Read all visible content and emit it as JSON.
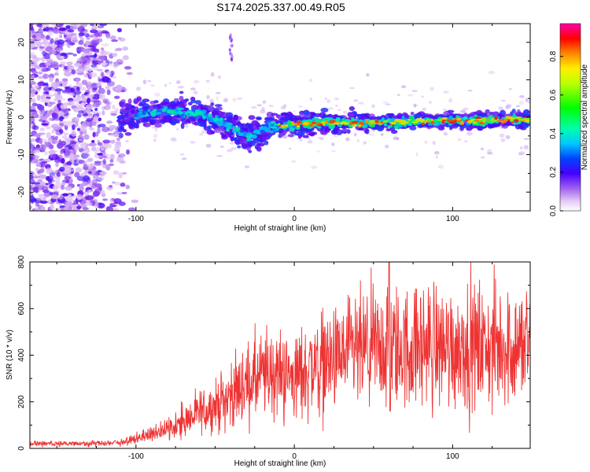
{
  "title": "S174.2025.337.00.49.R05",
  "chart_data": [
    {
      "type": "heatmap",
      "name": "spectrogram",
      "xlabel": "Height of straight line (km)",
      "ylabel": "Frequency (Hz)",
      "xlim": [
        -167,
        149
      ],
      "ylim": [
        -25,
        25
      ],
      "x_ticks": [
        -100,
        0,
        100
      ],
      "y_ticks": [
        -20,
        -10,
        0,
        10,
        20
      ],
      "colorbar": {
        "label": "Normalized spectral amplitude",
        "range": [
          0,
          0.97
        ],
        "ticks": [
          "0.0",
          "0.2",
          "0.4",
          "0.6",
          "0.8"
        ]
      },
      "description_points": {
        "ridge_frequency_hz": [
          {
            "x": -105,
            "y": 0.5
          },
          {
            "x": -80,
            "y": 1.5
          },
          {
            "x": -60,
            "y": 1.0
          },
          {
            "x": -45,
            "y": -1.5
          },
          {
            "x": -30,
            "y": -5.5
          },
          {
            "x": -15,
            "y": -2.5
          },
          {
            "x": 0,
            "y": -2.0
          },
          {
            "x": 20,
            "y": -1.5
          },
          {
            "x": 50,
            "y": -1.5
          },
          {
            "x": 80,
            "y": -1.0
          },
          {
            "x": 110,
            "y": -1.0
          },
          {
            "x": 149,
            "y": -0.5
          }
        ]
      }
    },
    {
      "type": "line",
      "name": "snr",
      "xlabel": "Height of straight line (km)",
      "ylabel": "SNR (10 * v/v)",
      "xlim": [
        -167,
        149
      ],
      "ylim": [
        0,
        800
      ],
      "x_ticks": [
        -100,
        0,
        100
      ],
      "y_ticks": [
        0,
        200,
        400,
        600,
        800
      ],
      "color": "#ee3333",
      "series": [
        {
          "name": "SNR",
          "x": [
            -167,
            -150,
            -130,
            -110,
            -100,
            -90,
            -80,
            -70,
            -60,
            -50,
            -40,
            -30,
            -20,
            -10,
            0,
            10,
            20,
            30,
            40,
            50,
            60,
            70,
            80,
            90,
            100,
            110,
            120,
            130,
            140,
            149
          ],
          "y": [
            20,
            20,
            20,
            25,
            40,
            60,
            90,
            110,
            150,
            180,
            230,
            280,
            310,
            330,
            300,
            350,
            370,
            390,
            410,
            420,
            430,
            430,
            440,
            440,
            440,
            440,
            430,
            430,
            440,
            440
          ]
        }
      ]
    }
  ]
}
